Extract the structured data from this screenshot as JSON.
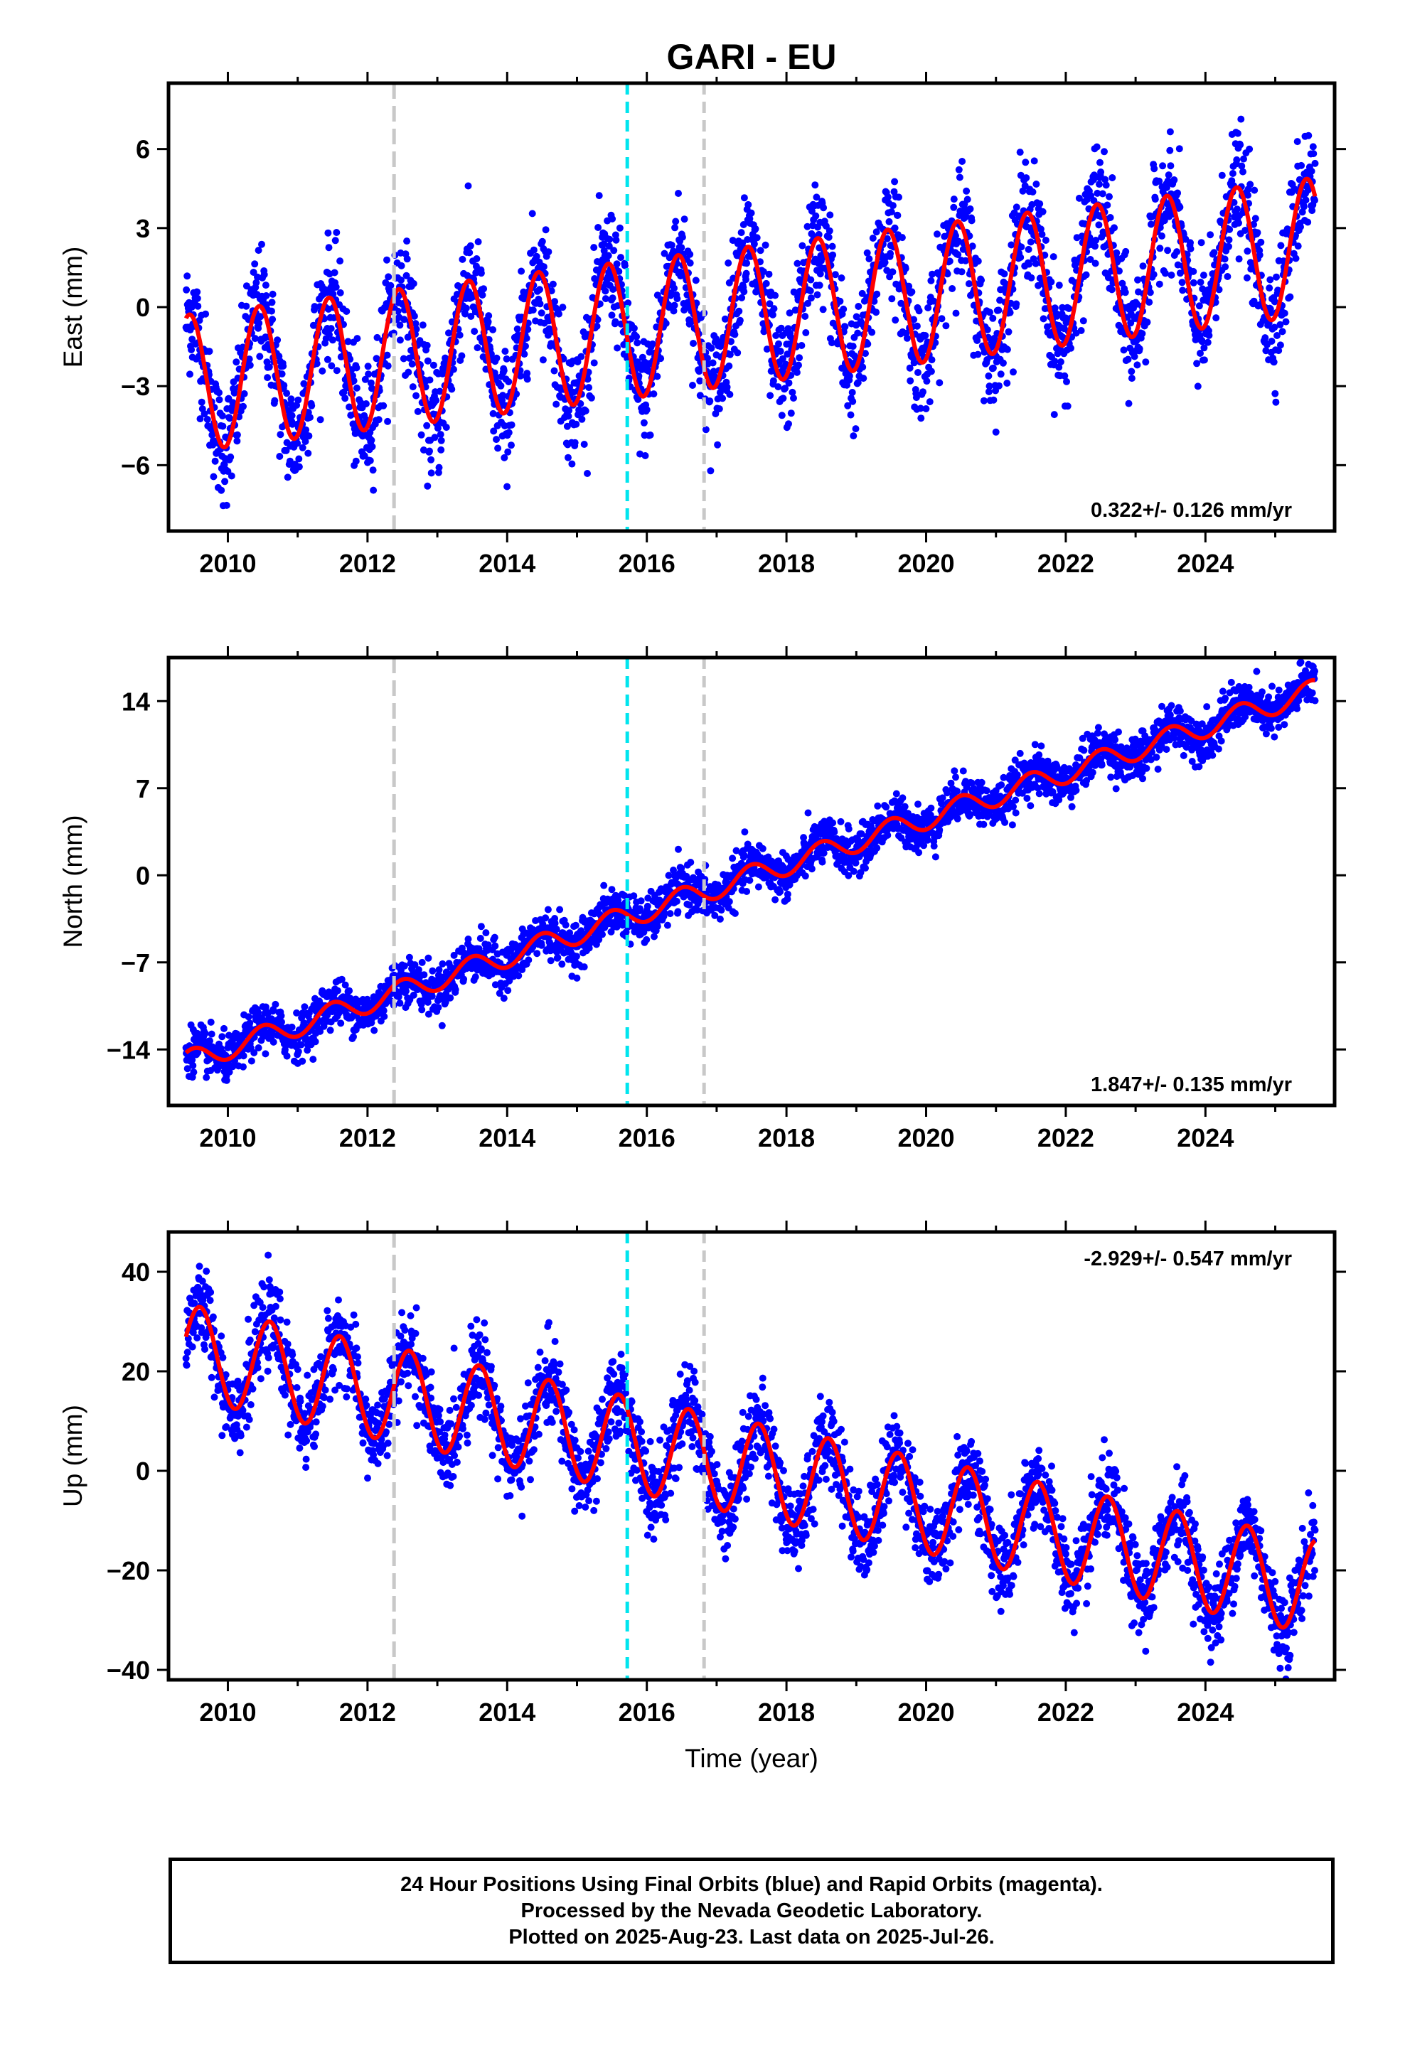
{
  "title": "GARI - EU",
  "chart_data": [
    {
      "type": "scatter",
      "name": "east-panel",
      "title": "GARI - EU",
      "xlabel": "",
      "ylabel": "East (mm)",
      "xlim": [
        2009.15,
        2025.85
      ],
      "ylim": [
        -8.5,
        8.5
      ],
      "xticks": [
        2010,
        2012,
        2014,
        2016,
        2018,
        2020,
        2022,
        2024
      ],
      "yticks": [
        -6,
        -3,
        0,
        3,
        6
      ],
      "ytick_labels": [
        "−6",
        "−3",
        "0",
        "3",
        "6"
      ],
      "rate_label": "0.322+/- 0.126 mm/yr",
      "rate_position": "bottom-right",
      "model": {
        "intercept": -2.9,
        "rate": 0.322,
        "ref_year": 2009.4,
        "annual_amp": 2.6,
        "peak_frac": 0.45
      },
      "scatter_sigma": 1.1,
      "vertical_lines": [
        {
          "x": 2012.38,
          "color": "#c8c8c8",
          "style": "long-dash"
        },
        {
          "x": 2015.72,
          "color": "#00e5ee",
          "style": "dash"
        },
        {
          "x": 2016.82,
          "color": "#c8c8c8",
          "style": "dash"
        }
      ]
    },
    {
      "type": "scatter",
      "name": "north-panel",
      "xlabel": "",
      "ylabel": "North (mm)",
      "xlim": [
        2009.15,
        2025.85
      ],
      "ylim": [
        -18.5,
        17.5
      ],
      "xticks": [
        2010,
        2012,
        2014,
        2016,
        2018,
        2020,
        2022,
        2024
      ],
      "yticks": [
        -14,
        -7,
        0,
        7,
        14
      ],
      "ytick_labels": [
        "−14",
        "−7",
        "0",
        "7",
        "14"
      ],
      "rate_label": "1.847+/- 0.135 mm/yr",
      "rate_position": "bottom-right",
      "model": {
        "intercept": -15.0,
        "rate": 1.847,
        "ref_year": 2009.4,
        "annual_amp": 0.9,
        "peak_frac": 0.5
      },
      "scatter_sigma": 0.9,
      "vertical_lines": [
        {
          "x": 2012.38,
          "color": "#c8c8c8",
          "style": "long-dash"
        },
        {
          "x": 2015.72,
          "color": "#00e5ee",
          "style": "dash"
        },
        {
          "x": 2016.82,
          "color": "#c8c8c8",
          "style": "dash"
        }
      ]
    },
    {
      "type": "scatter",
      "name": "up-panel",
      "xlabel": "Time (year)",
      "ylabel": "Up (mm)",
      "xlim": [
        2009.15,
        2025.85
      ],
      "ylim": [
        -42,
        48
      ],
      "xticks": [
        2010,
        2012,
        2014,
        2016,
        2018,
        2020,
        2022,
        2024
      ],
      "yticks": [
        -40,
        -20,
        0,
        20,
        40
      ],
      "ytick_labels": [
        "−40",
        "−20",
        "0",
        "20",
        "40"
      ],
      "rate_label": "-2.929+/- 0.547 mm/yr",
      "rate_position": "top-right",
      "model": {
        "intercept": 24.0,
        "rate": -2.929,
        "ref_year": 2009.4,
        "annual_amp": 9.5,
        "peak_frac": 0.6
      },
      "scatter_sigma": 4.2,
      "vertical_lines": [
        {
          "x": 2012.38,
          "color": "#c8c8c8",
          "style": "long-dash"
        },
        {
          "x": 2015.72,
          "color": "#00e5ee",
          "style": "dash"
        },
        {
          "x": 2016.82,
          "color": "#c8c8c8",
          "style": "dash"
        }
      ]
    }
  ],
  "data_range": {
    "start": 2009.4,
    "end": 2025.57,
    "sample_step": 0.0055
  },
  "colors": {
    "points": "#0000ff",
    "model": "#ff0000",
    "frame": "#000000"
  },
  "footer": {
    "line1": "24 Hour Positions Using Final Orbits (blue) and Rapid Orbits (magenta).",
    "line2": "Processed by the Nevada Geodetic Laboratory.",
    "line3": "Plotted on 2025-Aug-23. Last data on 2025-Jul-26."
  }
}
